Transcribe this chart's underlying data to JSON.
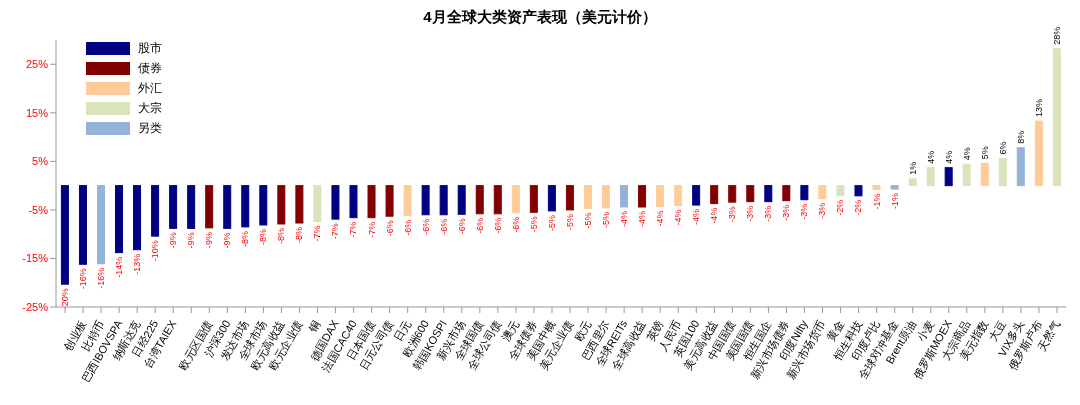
{
  "chart_data": {
    "type": "bar",
    "title": "4月全球大类资产表现（美元计价）",
    "categories": [
      null,
      "创业板",
      "比特币",
      "巴西IBOVSPA",
      "纳斯达克",
      "日经225",
      "台湾TAIEX",
      null,
      "欧元区国债",
      "沪深300",
      "发达市场",
      "全球市场",
      "欧元高收益",
      "欧元企业债",
      "铜",
      "德国DAX",
      "法国CAC40",
      "日本国债",
      "日元公司债",
      "日元",
      "欧洲600",
      "韩国KOSPI",
      "新兴市场",
      "全球国债",
      "全球公司债",
      "澳元",
      "全球债券",
      "美国中概",
      "美元企业债",
      "欧元",
      "巴西里尔",
      "全球REITs",
      "全球高收益",
      "英镑",
      "人民币",
      "英国100",
      "美元高收益",
      "中国国债",
      "美国国债",
      "恒生国企",
      "新兴市场债券",
      "印度Nifty",
      "新兴市场货币",
      "黄金",
      "恒生科技",
      "印度卢比",
      "全球对冲基金",
      "Brent原油",
      "小麦",
      "俄罗斯MOEX",
      "大宗商品",
      "美元指数",
      "大豆",
      "VIX多头",
      "俄罗斯卢布",
      "天然气"
    ],
    "stacked": true,
    "series": [
      {
        "name": "股市",
        "color": "#000080",
        "values": [
          -20.3,
          -16.2,
          null,
          -13.8,
          -13.2,
          -10.4,
          -8.8,
          -8.8,
          null,
          -8.8,
          -8.5,
          -8.1,
          null,
          null,
          null,
          -6.9,
          -6.6,
          null,
          null,
          null,
          -6.0,
          -6.0,
          -5.9,
          null,
          null,
          null,
          null,
          -5.2,
          null,
          null,
          null,
          null,
          null,
          null,
          null,
          -4.0,
          null,
          null,
          null,
          -3.3,
          null,
          -2.9,
          null,
          null,
          -2.1,
          null,
          null,
          null,
          null,
          3.7,
          null,
          null,
          null,
          null,
          null,
          null
        ],
        "value_labels": [
          "-20%",
          "-16%",
          null,
          "-14%",
          "-13%",
          "-10%",
          "-9%",
          "-9%",
          null,
          "-9%",
          "-8%",
          "-8%",
          null,
          null,
          null,
          "-7%",
          "-7%",
          null,
          null,
          null,
          "-6%",
          "-6%",
          "-6%",
          null,
          null,
          null,
          null,
          "-5%",
          null,
          null,
          null,
          null,
          null,
          null,
          null,
          "-4%",
          null,
          null,
          null,
          "-3%",
          null,
          "-3%",
          null,
          null,
          "-2%",
          null,
          null,
          null,
          null,
          "4%",
          null,
          null,
          null,
          null,
          null,
          null
        ]
      },
      {
        "name": "债券",
        "color": "#800000",
        "values": [
          null,
          null,
          null,
          null,
          null,
          null,
          null,
          null,
          -8.7,
          null,
          null,
          null,
          -7.9,
          -7.7,
          null,
          null,
          null,
          -6.6,
          -6.3,
          null,
          null,
          null,
          null,
          -5.8,
          -5.8,
          null,
          -5.5,
          null,
          -5.0,
          null,
          null,
          null,
          -4.4,
          null,
          null,
          null,
          -3.7,
          -3.4,
          -3.3,
          null,
          -3.1,
          null,
          null,
          null,
          null,
          null,
          null,
          null,
          null,
          null,
          null,
          null,
          null,
          null,
          null,
          null
        ],
        "value_labels": [
          null,
          null,
          null,
          null,
          null,
          null,
          null,
          null,
          "-9%",
          null,
          null,
          null,
          "-8%",
          "-8%",
          null,
          null,
          null,
          "-7%",
          "-6%",
          null,
          null,
          null,
          null,
          "-6%",
          "-6%",
          null,
          "-5%",
          null,
          "-5%",
          null,
          null,
          null,
          "-4%",
          null,
          null,
          null,
          "-4%",
          "-3%",
          "-3%",
          null,
          "-3%",
          null,
          null,
          null,
          null,
          null,
          null,
          null,
          null,
          null,
          null,
          null,
          null,
          null,
          null,
          null
        ]
      },
      {
        "name": "外汇",
        "color": "#ffcc99",
        "values": [
          null,
          null,
          null,
          null,
          null,
          null,
          null,
          null,
          null,
          null,
          null,
          null,
          null,
          null,
          null,
          null,
          null,
          null,
          null,
          -6.2,
          null,
          null,
          null,
          null,
          null,
          -5.6,
          null,
          null,
          null,
          -4.7,
          -4.6,
          null,
          null,
          -4.3,
          -4.1,
          null,
          null,
          null,
          null,
          null,
          null,
          null,
          -2.7,
          null,
          null,
          -0.8,
          null,
          null,
          null,
          null,
          null,
          4.6,
          null,
          null,
          13.3,
          null
        ],
        "value_labels": [
          null,
          null,
          null,
          null,
          null,
          null,
          null,
          null,
          null,
          null,
          null,
          null,
          null,
          null,
          null,
          null,
          null,
          null,
          null,
          "-6%",
          null,
          null,
          null,
          null,
          null,
          "-6%",
          null,
          null,
          null,
          "-5%",
          "-5%",
          null,
          null,
          "-4%",
          "-4%",
          null,
          null,
          null,
          null,
          null,
          null,
          null,
          "-3%",
          null,
          null,
          "-1%",
          null,
          null,
          null,
          null,
          null,
          "5%",
          null,
          null,
          "13%",
          null
        ]
      },
      {
        "name": "大宗",
        "color": "#d8e4bc",
        "values": [
          null,
          null,
          null,
          null,
          null,
          null,
          null,
          null,
          null,
          null,
          null,
          null,
          null,
          null,
          -7.4,
          null,
          null,
          null,
          null,
          null,
          null,
          null,
          null,
          null,
          null,
          null,
          null,
          null,
          null,
          null,
          null,
          null,
          null,
          null,
          null,
          null,
          null,
          null,
          null,
          null,
          null,
          null,
          null,
          -2.1,
          null,
          null,
          null,
          1.4,
          3.7,
          null,
          4.4,
          null,
          5.6,
          null,
          null,
          28.2
        ],
        "value_labels": [
          null,
          null,
          null,
          null,
          null,
          null,
          null,
          null,
          null,
          null,
          null,
          null,
          null,
          null,
          "-7%",
          null,
          null,
          null,
          null,
          null,
          null,
          null,
          null,
          null,
          null,
          null,
          null,
          null,
          null,
          null,
          null,
          null,
          null,
          null,
          null,
          null,
          null,
          null,
          null,
          null,
          null,
          null,
          null,
          "-2%",
          null,
          null,
          null,
          "1%",
          "4%",
          null,
          "4%",
          null,
          "6%",
          null,
          null,
          "28%"
        ]
      },
      {
        "name": "另类",
        "color": "#95b3d7",
        "values": [
          null,
          null,
          -16.1,
          null,
          null,
          null,
          null,
          null,
          null,
          null,
          null,
          null,
          null,
          null,
          null,
          null,
          null,
          null,
          null,
          null,
          null,
          null,
          null,
          null,
          null,
          null,
          null,
          null,
          null,
          null,
          null,
          -4.4,
          null,
          null,
          null,
          null,
          null,
          null,
          null,
          null,
          null,
          null,
          null,
          null,
          null,
          null,
          -0.7,
          null,
          null,
          null,
          null,
          null,
          null,
          7.8,
          null,
          null
        ],
        "value_labels": [
          null,
          null,
          "-16%",
          null,
          null,
          null,
          null,
          null,
          null,
          null,
          null,
          null,
          null,
          null,
          null,
          null,
          null,
          null,
          null,
          null,
          null,
          null,
          null,
          null,
          null,
          null,
          null,
          null,
          null,
          null,
          null,
          "-4%",
          null,
          null,
          null,
          null,
          null,
          null,
          null,
          null,
          null,
          null,
          null,
          null,
          null,
          null,
          "-1%",
          null,
          null,
          null,
          null,
          null,
          null,
          "8%",
          null,
          null
        ]
      }
    ],
    "ylim": [
      -25,
      30
    ],
    "yticks": [
      {
        "value": -25,
        "label": "-25%"
      },
      {
        "value": -15,
        "label": "-15%"
      },
      {
        "value": -5,
        "label": "-5%"
      },
      {
        "value": 5,
        "label": "5%"
      },
      {
        "value": 15,
        "label": "15%"
      },
      {
        "value": 25,
        "label": "25%"
      }
    ],
    "legend": "top left"
  }
}
